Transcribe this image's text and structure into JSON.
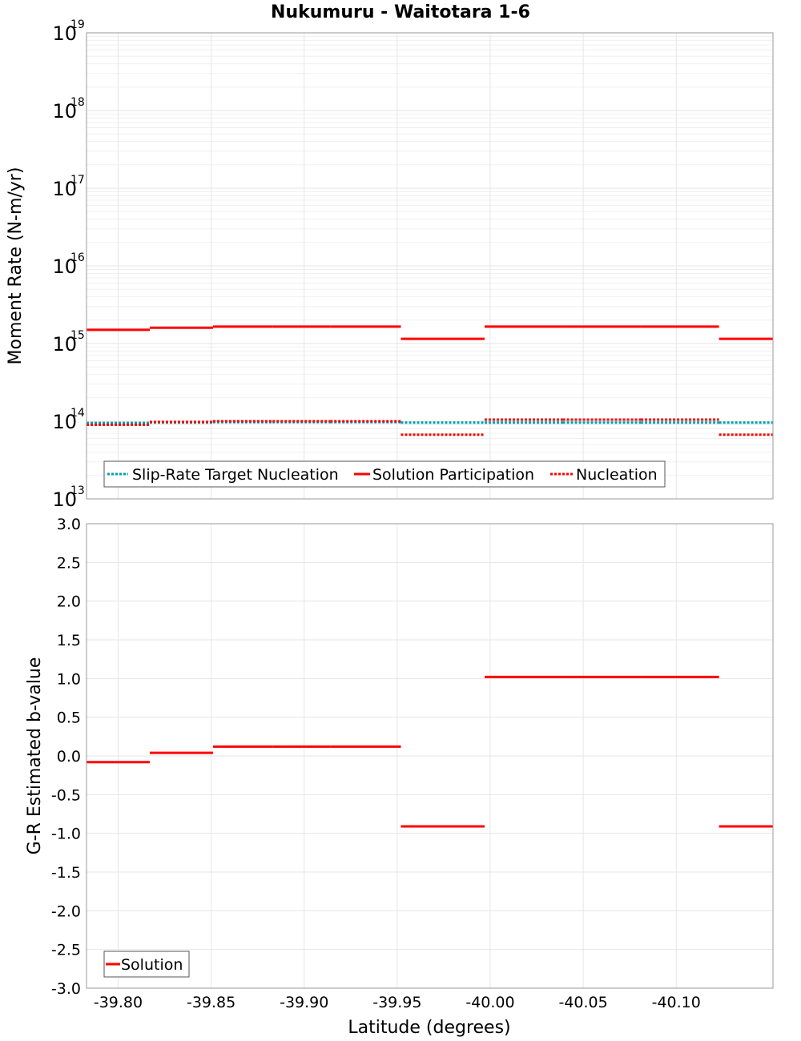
{
  "chart_data": [
    {
      "type": "line",
      "title": "Nukumuru - Waitotara 1-6",
      "xlabel": "Latitude (degrees)",
      "ylabel": "Moment Rate (N-m/yr)",
      "yscale": "log",
      "ylim_exponents": [
        13,
        19
      ],
      "y_ticks": [
        {
          "base": "10",
          "exp": "13"
        },
        {
          "base": "10",
          "exp": "14"
        },
        {
          "base": "10",
          "exp": "15"
        },
        {
          "base": "10",
          "exp": "16"
        },
        {
          "base": "10",
          "exp": "17"
        },
        {
          "base": "10",
          "exp": "18"
        },
        {
          "base": "10",
          "exp": "19"
        }
      ],
      "xlim": [
        -39.783,
        -40.152
      ],
      "x_tick_values": [
        -39.8,
        -39.85,
        -39.9,
        -39.95,
        -40.0,
        -40.05,
        -40.1
      ],
      "x_tick_labels": [
        "-39.80",
        "-39.85",
        "-39.90",
        "-39.95",
        "-40.00",
        "-40.05",
        "-40.10"
      ],
      "legend": [
        "Slip-Rate Target Nucleation",
        "Solution Participation",
        "Nucleation"
      ],
      "legend_position": "bottom-left",
      "segment_bounds": [
        -39.783,
        -39.817,
        -39.851,
        -39.883,
        -39.914,
        -39.952,
        -39.997,
        -40.039,
        -40.081,
        -40.123,
        -40.152
      ],
      "series": [
        {
          "name": "Slip-Rate Target Nucleation",
          "color": "#00a0b0",
          "style": "dotted",
          "values": [
            95000000000000.0,
            96000000000000.0,
            97000000000000.0,
            97000000000000.0,
            97000000000000.0,
            96000000000000.0,
            96000000000000.0,
            96000000000000.0,
            96000000000000.0,
            96000000000000.0
          ]
        },
        {
          "name": "Solution Participation",
          "color": "#ff0000",
          "style": "solid",
          "values": [
            1500000000000000.0,
            1600000000000000.0,
            1650000000000000.0,
            1650000000000000.0,
            1650000000000000.0,
            1150000000000000.0,
            1650000000000000.0,
            1650000000000000.0,
            1650000000000000.0,
            1150000000000000.0
          ]
        },
        {
          "name": "Nucleation",
          "color": "#ff0000",
          "style": "dotted",
          "values": [
            90000000000000.0,
            98000000000000.0,
            100000000000000.0,
            100000000000000.0,
            100000000000000.0,
            67000000000000.0,
            105000000000000.0,
            105000000000000.0,
            105000000000000.0,
            67000000000000.0
          ]
        }
      ]
    },
    {
      "type": "line",
      "xlabel": "Latitude (degrees)",
      "ylabel": "G-R Estimated b-value",
      "ylim": [
        -3.0,
        3.0
      ],
      "y_tick_values": [
        3.0,
        2.5,
        2.0,
        1.5,
        1.0,
        0.5,
        0.0,
        -0.5,
        -1.0,
        -1.5,
        -2.0,
        -2.5,
        -3.0
      ],
      "y_tick_labels": [
        "3.0",
        "2.5",
        "2.0",
        "1.5",
        "1.0",
        "0.5",
        "0.0",
        "-0.5",
        "-1.0",
        "-1.5",
        "-2.0",
        "-2.5",
        "-3.0"
      ],
      "xlim": [
        -39.783,
        -40.152
      ],
      "x_tick_values": [
        -39.8,
        -39.85,
        -39.9,
        -39.95,
        -40.0,
        -40.05,
        -40.1
      ],
      "x_tick_labels": [
        "-39.80",
        "-39.85",
        "-39.90",
        "-39.95",
        "-40.00",
        "-40.05",
        "-40.10"
      ],
      "legend": [
        "Solution"
      ],
      "legend_position": "bottom-left",
      "segment_bounds": [
        -39.783,
        -39.817,
        -39.851,
        -39.883,
        -39.914,
        -39.952,
        -39.997,
        -40.039,
        -40.081,
        -40.123,
        -40.152
      ],
      "series": [
        {
          "name": "Solution",
          "color": "#ff0000",
          "style": "solid",
          "values": [
            -0.08,
            0.04,
            0.12,
            0.12,
            0.12,
            -0.91,
            1.02,
            1.02,
            1.02,
            -0.91
          ]
        }
      ]
    }
  ]
}
